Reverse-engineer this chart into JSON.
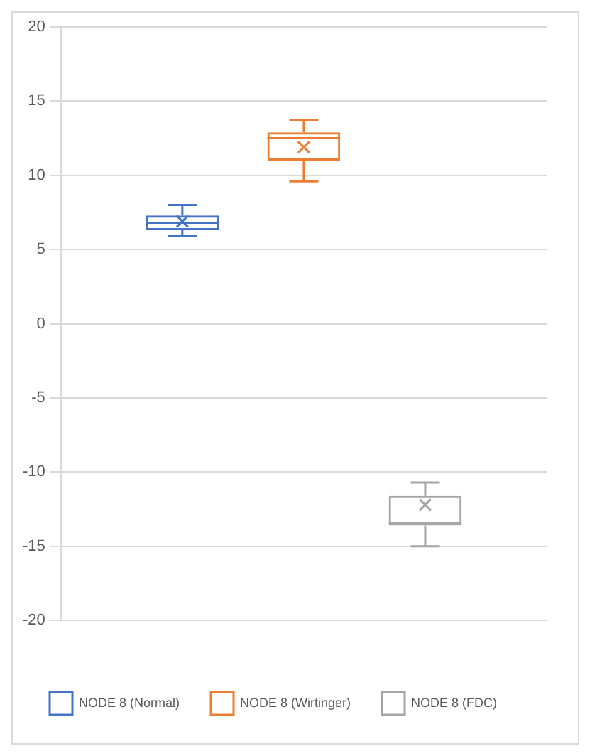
{
  "chart_data": {
    "type": "box",
    "categories": [
      null
    ],
    "ylim": [
      -20,
      20
    ],
    "yticks": [
      -20,
      -15,
      -10,
      -5,
      0,
      5,
      10,
      15,
      20
    ],
    "grid": "y",
    "legend": "bottom",
    "series": [
      {
        "name": "NODE 8 (Normal)",
        "color": "#4472c4",
        "boxes": [
          {
            "low": 5.9,
            "q1": 6.3,
            "median": 6.8,
            "q3": 7.3,
            "high": 8.0,
            "mean": 6.9
          }
        ]
      },
      {
        "name": "NODE 8 (Wirtinger)",
        "color": "#ed7d31",
        "boxes": [
          {
            "low": 9.6,
            "q1": 11.0,
            "median": 12.5,
            "q3": 12.9,
            "high": 13.7,
            "mean": 11.9
          }
        ]
      },
      {
        "name": "NODE 8 (FDC)",
        "color": "#a5a5a5",
        "boxes": [
          {
            "low": -15.0,
            "q1": -13.6,
            "median": -13.4,
            "q3": -11.6,
            "high": -10.7,
            "mean": -12.2
          }
        ]
      }
    ]
  }
}
